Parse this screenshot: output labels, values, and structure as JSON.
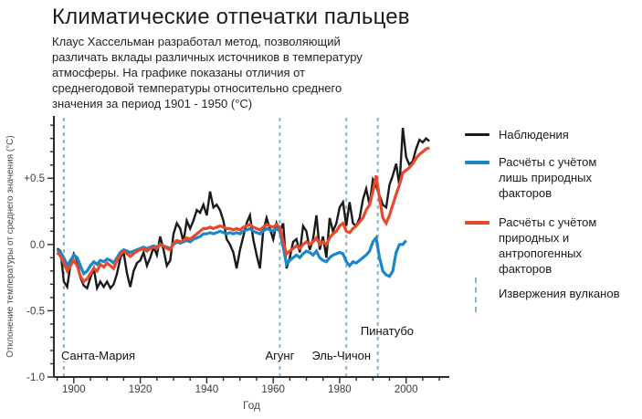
{
  "header": {
    "title": "Климатические отпечатки пальцев",
    "subtitle_lines": [
      "Клаус Хассельман разработал метод, позволяющий",
      "различать вклады различных источников в температуру",
      "атмосферы. На графике показаны отличия от",
      "среднегодовой температуры относительно среднего",
      "значения за период 1901 - 1950 (°C)"
    ]
  },
  "chart_data": {
    "type": "line",
    "title": "Климатические отпечатки пальцев",
    "xlabel": "Год",
    "ylabel": "Отклонение температуры от среднего значения (°C)",
    "x_domain": [
      1894,
      2013
    ],
    "y_domain": [
      -1.0,
      0.97
    ],
    "grid": false,
    "legend_position": "right",
    "x_major_ticks": [
      1900,
      1920,
      1940,
      1960,
      1980,
      2000
    ],
    "x_minor_tick_step_years": 5,
    "x_minor_tick_range": [
      1895,
      2010
    ],
    "y_major_ticks": [
      {
        "value": 0.5,
        "label": "+0.5"
      },
      {
        "value": 0.0,
        "label": "0.0"
      },
      {
        "value": -0.5,
        "label": "-0.5"
      },
      {
        "value": -1.0,
        "label": "-1.0"
      }
    ],
    "y_minor_tick_step": 0.1,
    "axis_color": "#2b2b2b",
    "tick_label_color": "#3b3b3b",
    "series": [
      {
        "id": "observations",
        "name": "Наблюдения",
        "color": "#1a1a1a",
        "width": 2.4,
        "start_year": 1895,
        "values": [
          -0.03,
          -0.05,
          -0.28,
          -0.32,
          -0.15,
          -0.07,
          -0.12,
          -0.25,
          -0.31,
          -0.33,
          -0.25,
          -0.18,
          -0.33,
          -0.28,
          -0.32,
          -0.28,
          -0.33,
          -0.3,
          -0.22,
          -0.1,
          -0.06,
          -0.22,
          -0.32,
          -0.2,
          -0.14,
          -0.12,
          -0.06,
          -0.16,
          -0.1,
          -0.02,
          -0.08,
          0.06,
          -0.04,
          -0.16,
          -0.12,
          0.08,
          0.16,
          0.12,
          0.02,
          0.18,
          0.12,
          0.18,
          0.26,
          0.24,
          0.3,
          0.22,
          0.4,
          0.28,
          0.3,
          0.26,
          0.18,
          0.04,
          0.0,
          -0.06,
          -0.18,
          -0.04,
          0.06,
          0.16,
          0.22,
          0.04,
          -0.08,
          -0.18,
          0.1,
          0.2,
          0.12,
          0.04,
          0.16,
          0.1,
          0.16,
          -0.18,
          -0.1,
          0.02,
          0.04,
          -0.06,
          0.14,
          0.1,
          -0.04,
          0.04,
          0.22,
          -0.04,
          0.06,
          -0.1,
          0.2,
          0.1,
          0.16,
          0.28,
          0.32,
          0.14,
          0.32,
          0.16,
          0.14,
          0.2,
          0.34,
          0.42,
          0.3,
          0.49,
          0.44,
          0.37,
          0.3,
          0.28,
          0.45,
          0.52,
          0.61,
          0.44,
          0.88,
          0.66,
          0.6,
          0.63,
          0.72,
          0.79,
          0.77,
          0.8,
          0.78
        ]
      },
      {
        "id": "natural-only",
        "name": "Расчёты с учётом лишь природных факторов",
        "color": "#1b87c9",
        "width": 3.2,
        "start_year": 1895,
        "values": [
          -0.04,
          -0.06,
          -0.1,
          -0.16,
          -0.12,
          -0.08,
          -0.1,
          -0.16,
          -0.22,
          -0.2,
          -0.16,
          -0.13,
          -0.15,
          -0.12,
          -0.13,
          -0.11,
          -0.12,
          -0.14,
          -0.1,
          -0.06,
          -0.04,
          -0.05,
          -0.06,
          -0.05,
          -0.04,
          -0.03,
          -0.02,
          -0.03,
          -0.02,
          -0.01,
          -0.02,
          0.0,
          -0.01,
          -0.02,
          -0.03,
          0.0,
          0.02,
          0.01,
          0.02,
          0.03,
          0.02,
          0.04,
          0.05,
          0.06,
          0.08,
          0.08,
          0.09,
          0.08,
          0.09,
          0.1,
          0.09,
          0.08,
          0.09,
          0.08,
          0.09,
          0.08,
          0.1,
          0.11,
          0.12,
          0.1,
          0.09,
          0.08,
          0.1,
          0.12,
          0.11,
          0.1,
          0.12,
          0.1,
          -0.02,
          -0.15,
          -0.12,
          -0.1,
          -0.08,
          -0.1,
          -0.07,
          -0.05,
          -0.06,
          -0.08,
          -0.05,
          -0.1,
          -0.12,
          -0.13,
          -0.1,
          -0.08,
          -0.07,
          -0.06,
          -0.07,
          -0.13,
          -0.16,
          -0.13,
          -0.14,
          -0.12,
          -0.1,
          -0.08,
          -0.05,
          0.02,
          0.05,
          -0.1,
          -0.2,
          -0.23,
          -0.24,
          -0.2,
          -0.06,
          0.0,
          0.0,
          0.03
        ]
      },
      {
        "id": "natural-anthropogenic",
        "name": "Расчёты с учётом природных и антропогенных факторов",
        "color": "#e8492b",
        "width": 3.2,
        "start_year": 1895,
        "values": [
          -0.06,
          -0.09,
          -0.14,
          -0.2,
          -0.16,
          -0.12,
          -0.16,
          -0.24,
          -0.28,
          -0.26,
          -0.22,
          -0.18,
          -0.2,
          -0.15,
          -0.17,
          -0.14,
          -0.16,
          -0.18,
          -0.12,
          -0.08,
          -0.05,
          -0.07,
          -0.09,
          -0.07,
          -0.05,
          -0.04,
          -0.03,
          -0.05,
          -0.03,
          -0.02,
          -0.03,
          0.0,
          -0.01,
          -0.03,
          -0.04,
          0.01,
          0.03,
          0.02,
          0.03,
          0.05,
          0.04,
          0.06,
          0.08,
          0.1,
          0.12,
          0.12,
          0.13,
          0.12,
          0.13,
          0.14,
          0.13,
          0.12,
          0.12,
          0.11,
          0.12,
          0.11,
          0.13,
          0.14,
          0.15,
          0.13,
          0.12,
          0.11,
          0.13,
          0.15,
          0.14,
          0.13,
          0.15,
          0.13,
          0.02,
          -0.07,
          -0.05,
          -0.03,
          -0.01,
          -0.03,
          0.0,
          0.02,
          0.0,
          0.02,
          0.05,
          0.0,
          0.02,
          0.0,
          0.05,
          0.08,
          0.1,
          0.14,
          0.16,
          0.1,
          0.09,
          0.12,
          0.14,
          0.17,
          0.2,
          0.26,
          0.3,
          0.4,
          0.52,
          0.35,
          0.2,
          0.16,
          0.22,
          0.3,
          0.38,
          0.45,
          0.54,
          0.56,
          0.58,
          0.61,
          0.65,
          0.68,
          0.7,
          0.72,
          0.73
        ]
      }
    ],
    "volcanoes": {
      "color": "#85b4d4",
      "dash": "4 4",
      "line_width": 2,
      "events": [
        {
          "id": "santa-maria",
          "name": "Санта-Мария",
          "line_year": 1897,
          "label_year": 1896.2,
          "align": "start",
          "row": "bottom"
        },
        {
          "id": "agung",
          "name": "Агунг",
          "line_year": 1962,
          "label_year": 1962,
          "align": "middle",
          "row": "bottom"
        },
        {
          "id": "el-chichon",
          "name": "Эль-Чичон",
          "line_year": 1982,
          "label_year": 1980.5,
          "align": "middle",
          "row": "bottom"
        },
        {
          "id": "pinatubo",
          "name": "Пинатубо",
          "line_year": 1991.5,
          "label_year": 1994.3,
          "align": "middle",
          "row": "upper"
        }
      ]
    }
  },
  "legend": {
    "items": [
      {
        "id": "observations",
        "swatch": "line",
        "color": "#1a1a1a",
        "thickness": 3,
        "lines": [
          "Наблюдения"
        ]
      },
      {
        "id": "natural-only",
        "swatch": "line",
        "color": "#1b87c9",
        "thickness": 4,
        "lines": [
          "Расчёты с учётом",
          "лишь природных",
          "факторов"
        ]
      },
      {
        "id": "natural-anthropogenic",
        "swatch": "line",
        "color": "#e8492b",
        "thickness": 4,
        "lines": [
          "Расчёты с учётом",
          "природных и",
          "антропогенных",
          "факторов"
        ]
      },
      {
        "id": "volcanic-eruptions",
        "swatch": "dashed-vertical",
        "color": "#85b4d4",
        "thickness": 2,
        "lines": [
          "Извержения вулканов"
        ]
      }
    ]
  }
}
